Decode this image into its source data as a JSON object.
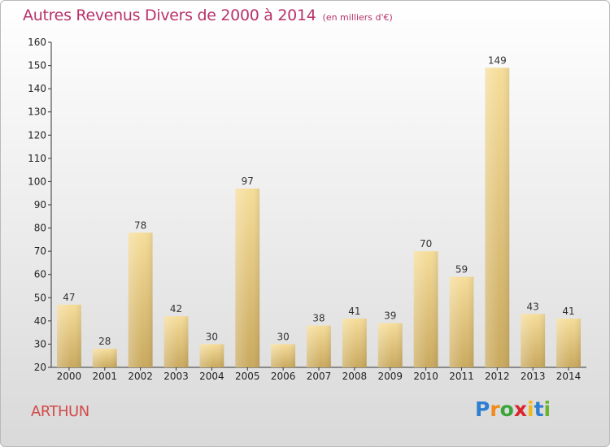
{
  "title": "Autres Revenus Divers de 2000 à 2014",
  "title_unit": "(en milliers d'€)",
  "commune": "ARTHUN",
  "logo": {
    "letters": [
      "P",
      "r",
      "o",
      "x",
      "i",
      "t",
      "i"
    ],
    "colors": [
      "#2e7fd1",
      "#f08a1c",
      "#3aa53a",
      "#d8262c",
      "#f0b81c",
      "#2e7fd1",
      "#6ab42c"
    ]
  },
  "chart_data": {
    "type": "bar",
    "title": "Autres Revenus Divers de 2000 à 2014",
    "categories": [
      "2000",
      "2001",
      "2002",
      "2003",
      "2004",
      "2005",
      "2006",
      "2007",
      "2008",
      "2009",
      "2010",
      "2011",
      "2012",
      "2013",
      "2014"
    ],
    "values": [
      47,
      28,
      78,
      42,
      30,
      97,
      30,
      38,
      41,
      39,
      70,
      59,
      149,
      43,
      41
    ],
    "ylim": [
      20,
      160
    ],
    "yticks": [
      20,
      30,
      40,
      50,
      60,
      70,
      80,
      90,
      100,
      110,
      120,
      130,
      140,
      150,
      160
    ],
    "grid": false,
    "bar_color": "#e8c77e"
  }
}
